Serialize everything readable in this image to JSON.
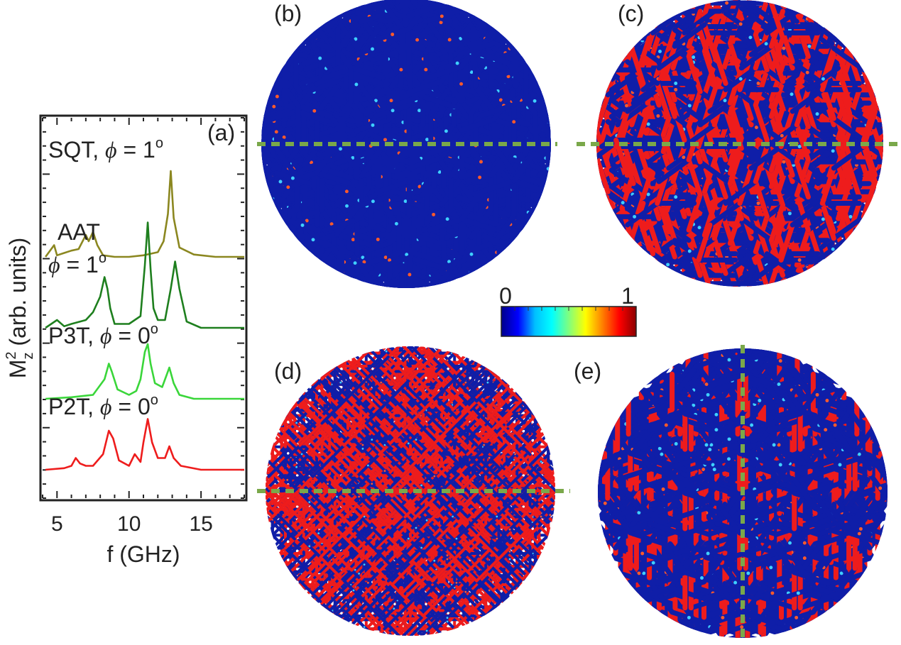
{
  "figure": {
    "panel_labels": {
      "a": "(a)",
      "b": "(b)",
      "c": "(c)",
      "d": "(d)",
      "e": "(e)"
    },
    "colorbar": {
      "min_label": "0",
      "max_label": "1",
      "colors": [
        "#00008b",
        "#0000ff",
        "#00bfff",
        "#00ffff",
        "#7fff7f",
        "#ffff00",
        "#ff8000",
        "#ff0000",
        "#8b0000"
      ]
    },
    "lattice_colors": {
      "low": "#0f1ea8",
      "high": "#ee1c1c"
    },
    "guide_line_color": "#7aa84a"
  },
  "chart_data": {
    "type": "line",
    "xlabel": "f (GHz)",
    "ylabel_parts": {
      "main": "M",
      "sup": "2",
      "sub": "z",
      "rest": " (arb. units)"
    },
    "xlim": [
      4,
      18
    ],
    "xticks": [
      "5",
      "10",
      "15"
    ],
    "series": [
      {
        "name": "SQT, ϕ = 1°",
        "label_main": "SQT, ",
        "label_phi": "ϕ",
        "label_eq": " = 1",
        "label_deg": "o",
        "color": "#8b8720",
        "offset": 3.0,
        "x": [
          4.2,
          4.8,
          5.0,
          5.5,
          6.0,
          6.5,
          7.0,
          7.2,
          7.5,
          7.8,
          8.2,
          9.0,
          10.0,
          11.0,
          11.5,
          12.0,
          12.4,
          12.7,
          12.9,
          13.1,
          13.5,
          14.5,
          16.0,
          18.0
        ],
        "y": [
          0.0,
          0.15,
          0.02,
          0.05,
          0.08,
          0.1,
          0.28,
          0.2,
          0.32,
          0.15,
          0.02,
          0.0,
          0.0,
          0.02,
          0.04,
          0.06,
          0.2,
          0.55,
          1.1,
          0.5,
          0.12,
          0.03,
          0.0,
          0.0
        ]
      },
      {
        "name": "AAT ϕ = 1°",
        "label_main": "AAT",
        "label_phi": "ϕ",
        "label_eq": " = 1",
        "label_deg": "o",
        "color": "#1e7f1e",
        "offset": 2.0,
        "x": [
          4.2,
          5.0,
          5.5,
          6.0,
          7.0,
          7.5,
          8.0,
          8.3,
          8.5,
          8.7,
          9.0,
          10.0,
          10.8,
          11.1,
          11.3,
          11.5,
          11.7,
          12.0,
          12.5,
          12.9,
          13.2,
          13.5,
          14.0,
          15.0,
          18.0
        ],
        "y": [
          0.0,
          0.1,
          0.02,
          0.05,
          0.1,
          0.2,
          0.4,
          0.65,
          0.5,
          0.25,
          0.05,
          0.05,
          0.15,
          0.8,
          1.35,
          0.75,
          0.25,
          0.1,
          0.1,
          0.5,
          0.85,
          0.5,
          0.08,
          0.0,
          0.0
        ]
      },
      {
        "name": "P3T, ϕ = 0°",
        "label_main": "P3T, ",
        "label_phi": "ϕ",
        "label_eq": " = 0",
        "label_deg": "o",
        "color": "#3ad63a",
        "offset": 1.0,
        "x": [
          4.2,
          6.0,
          7.5,
          8.3,
          8.6,
          8.8,
          9.2,
          10.0,
          10.5,
          10.8,
          11.1,
          11.3,
          11.5,
          11.8,
          12.3,
          12.6,
          12.8,
          13.1,
          13.5,
          14.5,
          18.0
        ],
        "y": [
          0.0,
          0.02,
          0.05,
          0.25,
          0.45,
          0.35,
          0.12,
          0.05,
          0.1,
          0.25,
          0.6,
          0.7,
          0.45,
          0.2,
          0.15,
          0.3,
          0.4,
          0.2,
          0.05,
          0.0,
          0.0
        ]
      },
      {
        "name": "P2T, ϕ = 0°",
        "label_main": "P2T, ",
        "label_phi": "ϕ",
        "label_eq": " = 0",
        "label_deg": "o",
        "color": "#ee1c1c",
        "offset": 0.0,
        "x": [
          4.2,
          5.5,
          6.0,
          6.3,
          6.6,
          7.0,
          7.5,
          8.2,
          8.6,
          8.9,
          9.3,
          10.0,
          10.4,
          10.8,
          11.0,
          11.3,
          11.6,
          12.0,
          12.5,
          12.8,
          13.1,
          13.6,
          15.0,
          18.0
        ],
        "y": [
          0.0,
          0.02,
          0.05,
          0.15,
          0.08,
          0.05,
          0.05,
          0.2,
          0.5,
          0.4,
          0.12,
          0.05,
          0.2,
          0.1,
          0.35,
          0.65,
          0.35,
          0.15,
          0.15,
          0.3,
          0.15,
          0.05,
          0.0,
          0.0
        ]
      }
    ]
  }
}
